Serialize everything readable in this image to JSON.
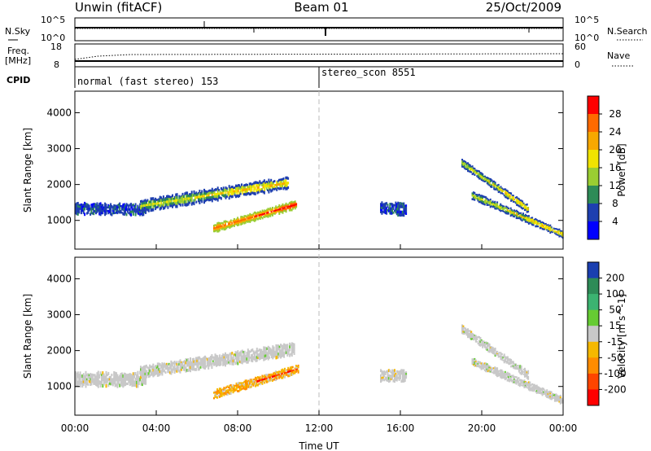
{
  "header": {
    "station": "Unwin (fitACF)",
    "beam": "Beam 01",
    "date": "25/Oct/2009"
  },
  "noise_panel": {
    "left_label": "N.Sky",
    "right_label": "N.Search",
    "left_ticks": [
      "10^5",
      "10^0"
    ],
    "right_ticks": [
      "10^5",
      "10^0"
    ]
  },
  "freq_panel": {
    "left_label_line1": "Freq.",
    "left_label_line2": "[MHz]",
    "right_label": "Nave",
    "left_ticks": [
      "18",
      "8"
    ],
    "right_ticks": [
      "60",
      "0"
    ]
  },
  "cpid": {
    "label": "CPID",
    "modes": [
      {
        "text": "normal (fast stereo) 153",
        "start_hour": 0
      },
      {
        "text": "stereo_scon 8551",
        "start_hour": 12
      }
    ]
  },
  "chart_data": [
    {
      "type": "heatmap",
      "panel": "power",
      "ylabel": "Slant Range [km]",
      "y_ticks": [
        1000,
        2000,
        3000,
        4000
      ],
      "ylim": [
        200,
        4600
      ],
      "xlim_hours": [
        0,
        24
      ],
      "colorbar_label": "Power [dB]",
      "colorbar_ticks": [
        "28",
        "24",
        "20",
        "16",
        "12",
        "8",
        "4"
      ],
      "colorbar_colors": [
        "#ff0000",
        "#ff6a00",
        "#f7a800",
        "#f1e300",
        "#9acd32",
        "#2e8b57",
        "#1e3fb0",
        "#0000ff"
      ],
      "echo_regions": [
        {
          "t0": 0.0,
          "t1": 3.5,
          "r_start": 1330,
          "r_end": 1300,
          "half_width": 160,
          "value": "low"
        },
        {
          "t0": 3.2,
          "t1": 10.5,
          "r_start": 1400,
          "r_end": 2050,
          "half_width": 170,
          "value": "mid"
        },
        {
          "t0": 6.8,
          "t1": 10.9,
          "r_start": 780,
          "r_end": 1450,
          "half_width": 120,
          "value": "high"
        },
        {
          "t0": 15.0,
          "t1": 16.3,
          "r_start": 1350,
          "r_end": 1300,
          "half_width": 180,
          "value": "low"
        },
        {
          "t0": 19.0,
          "t1": 22.3,
          "r_start": 2600,
          "r_end": 1300,
          "half_width": 110,
          "value": "mid"
        },
        {
          "t0": 19.5,
          "t1": 24.0,
          "r_start": 1700,
          "r_end": 600,
          "half_width": 110,
          "value": "mid"
        }
      ]
    },
    {
      "type": "heatmap",
      "panel": "velocity",
      "ylabel": "Slant Range [km]",
      "y_ticks": [
        1000,
        2000,
        3000,
        4000
      ],
      "ylim": [
        200,
        4600
      ],
      "xlim_hours": [
        0,
        24
      ],
      "colorbar_label": "Velocity [m s^-1]",
      "colorbar_ticks": [
        "200",
        "100",
        "50",
        "15",
        "-15",
        "-50",
        "-100",
        "-200"
      ],
      "colorbar_colors": [
        "#1a3fb0",
        "#2e8b57",
        "#3cb371",
        "#66cc33",
        "#c8c8c8",
        "#f5b800",
        "#ff8c00",
        "#ff4500",
        "#ff0000"
      ],
      "echo_regions": [
        {
          "t0": 0.0,
          "t1": 3.5,
          "r_start": 1200,
          "r_end": 1200,
          "half_width": 200,
          "value": "ground"
        },
        {
          "t0": 3.2,
          "t1": 10.8,
          "r_start": 1400,
          "r_end": 2050,
          "half_width": 170,
          "value": "ground"
        },
        {
          "t0": 6.8,
          "t1": 11.0,
          "r_start": 780,
          "r_end": 1500,
          "half_width": 120,
          "value": "negative"
        },
        {
          "t0": 15.0,
          "t1": 16.3,
          "r_start": 1300,
          "r_end": 1300,
          "half_width": 160,
          "value": "ground"
        },
        {
          "t0": 19.0,
          "t1": 22.3,
          "r_start": 2600,
          "r_end": 1300,
          "half_width": 110,
          "value": "ground"
        },
        {
          "t0": 19.5,
          "t1": 24.0,
          "r_start": 1700,
          "r_end": 600,
          "half_width": 110,
          "value": "ground"
        }
      ]
    }
  ],
  "x_axis": {
    "ticks": [
      "00:00",
      "04:00",
      "08:00",
      "12:00",
      "16:00",
      "20:00",
      "00:00"
    ],
    "label": "Time UT"
  }
}
